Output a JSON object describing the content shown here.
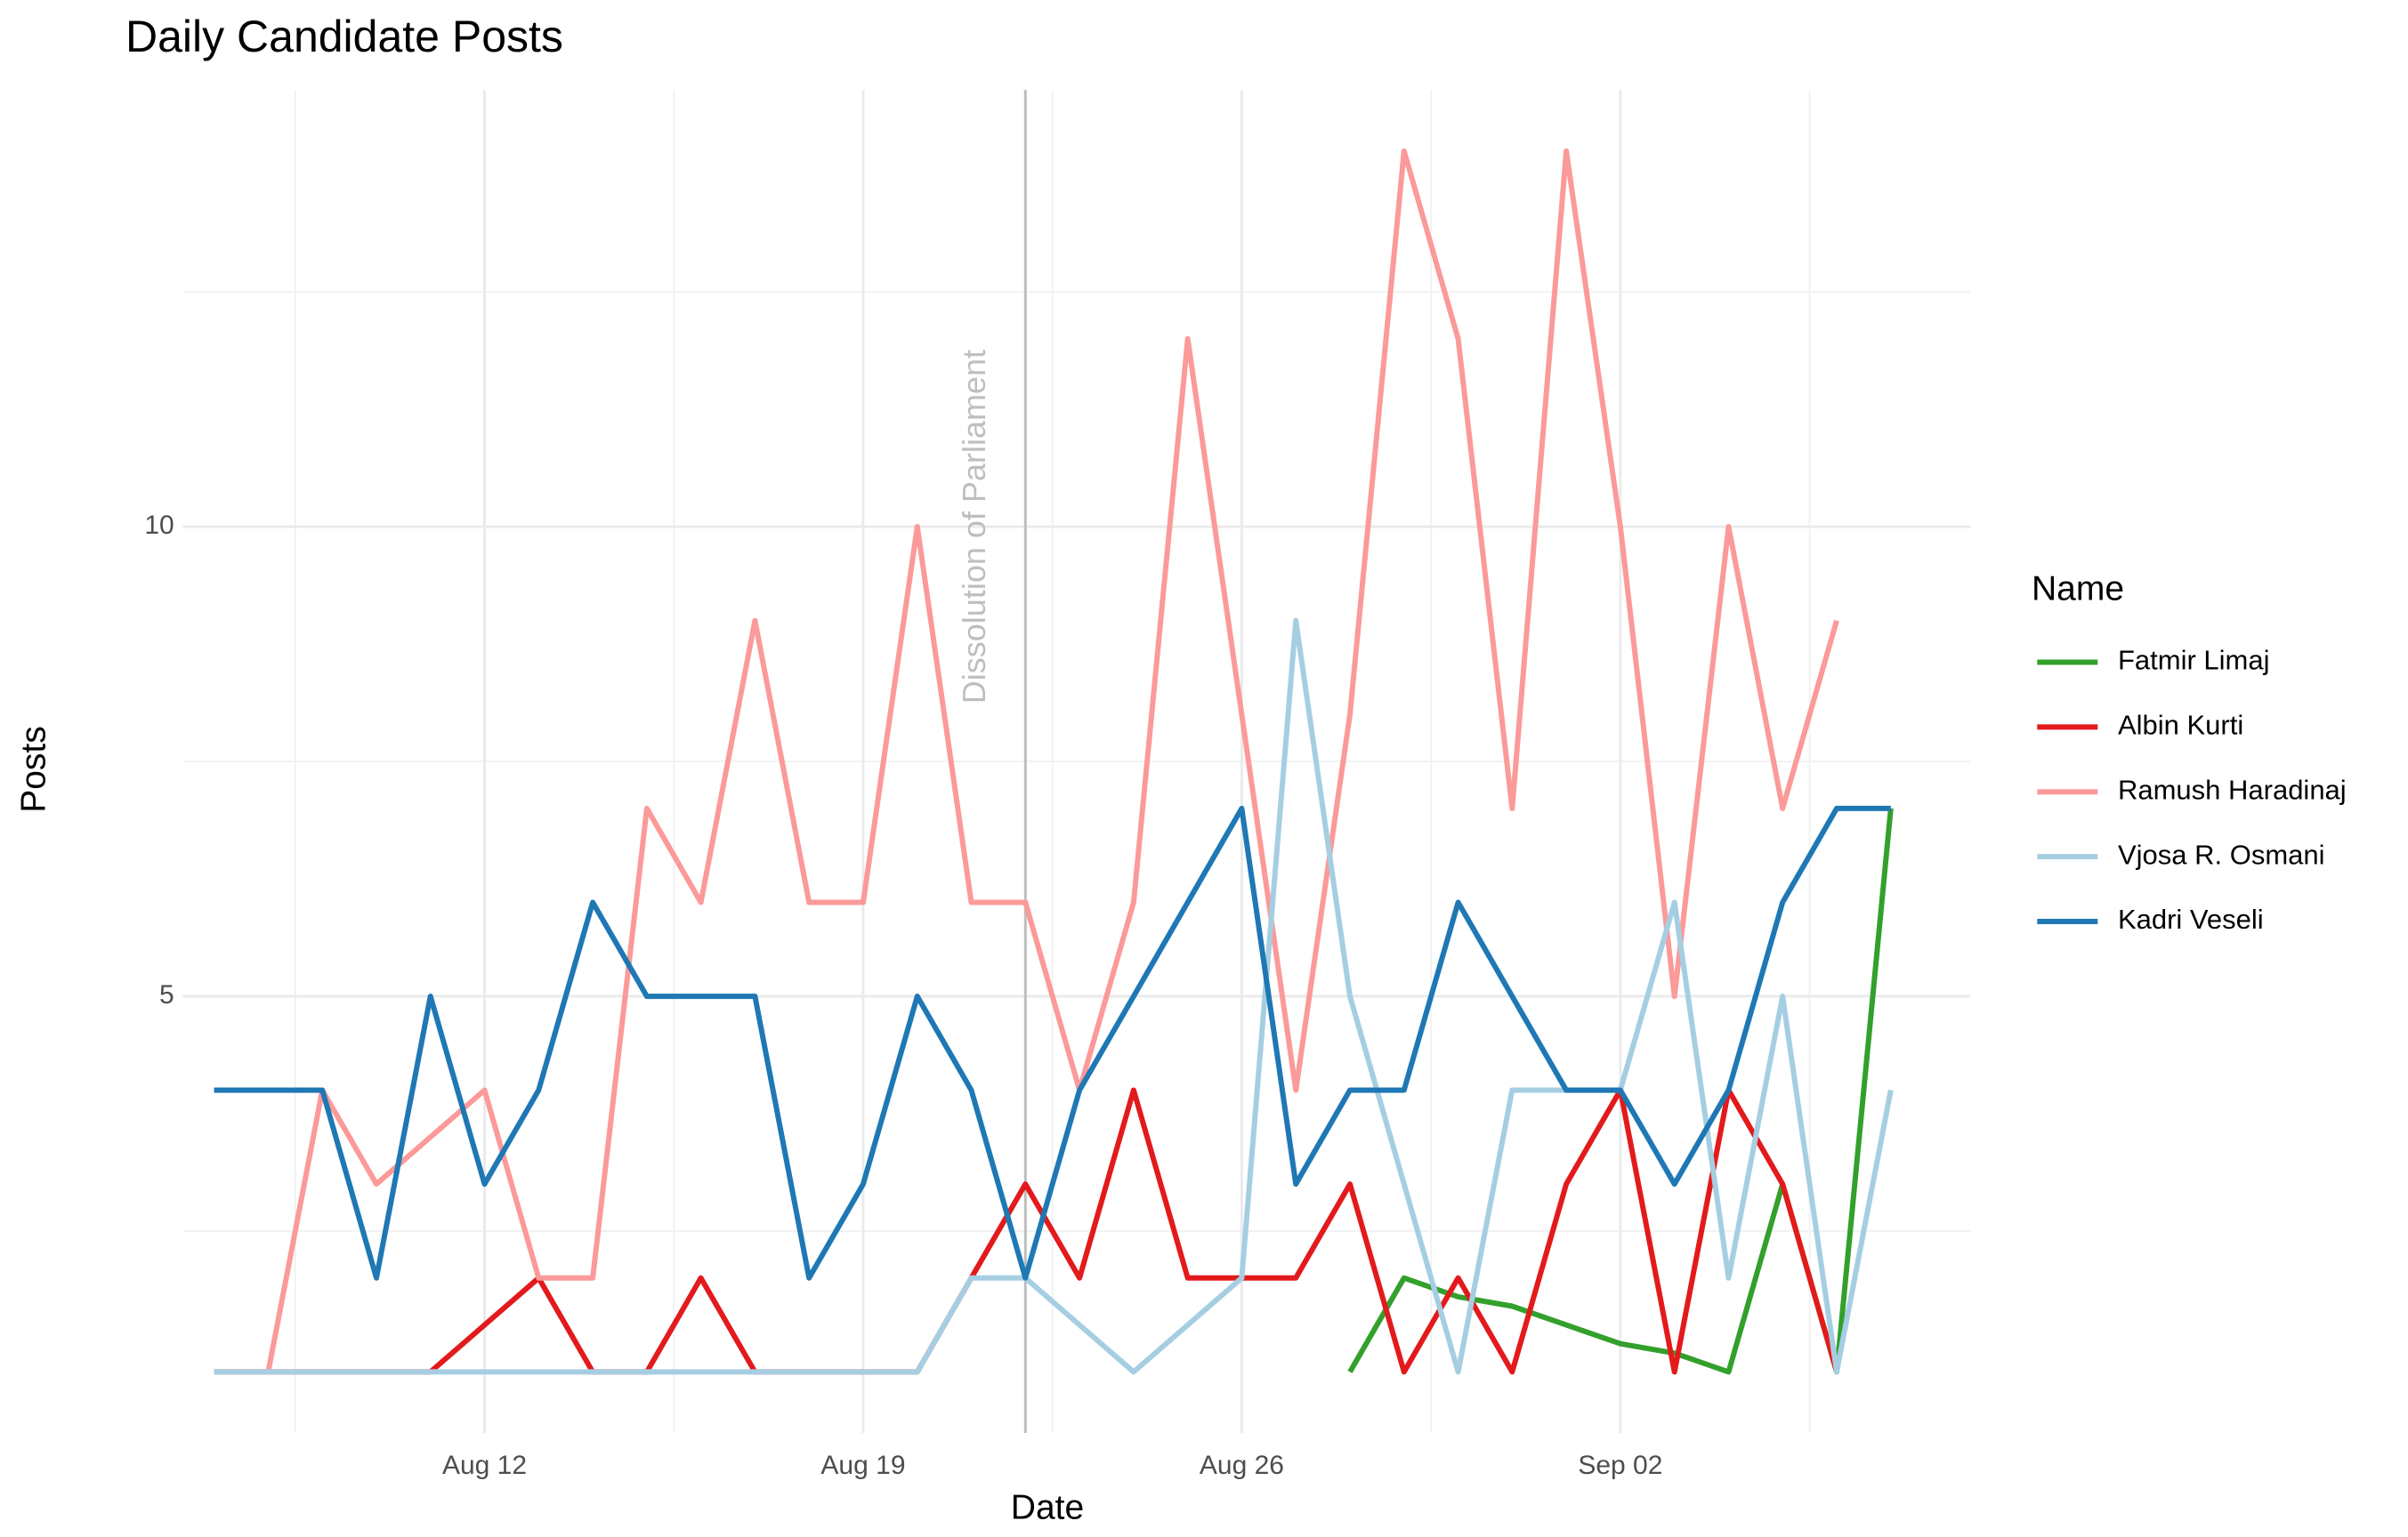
{
  "chart_data": {
    "type": "line",
    "title": "Daily Candidate Posts",
    "x_label": "Date",
    "y_label": "Posts",
    "legend_title": "Name",
    "x": [
      "Aug 07",
      "Aug 08",
      "Aug 09",
      "Aug 10",
      "Aug 11",
      "Aug 12",
      "Aug 13",
      "Aug 14",
      "Aug 15",
      "Aug 16",
      "Aug 17",
      "Aug 18",
      "Aug 19",
      "Aug 20",
      "Aug 21",
      "Aug 22",
      "Aug 23",
      "Aug 24",
      "Aug 25",
      "Aug 26",
      "Aug 27",
      "Aug 28",
      "Aug 29",
      "Aug 30",
      "Aug 31",
      "Sep 01",
      "Sep 02",
      "Sep 03",
      "Sep 04",
      "Sep 05",
      "Sep 06",
      "Sep 07"
    ],
    "xticks": [
      "Aug 12",
      "Aug 19",
      "Aug 26",
      "Sep 02"
    ],
    "ylim": [
      0.35,
      14.65
    ],
    "yticks": [
      5,
      10
    ],
    "grid": true,
    "legend": "right",
    "annotation": {
      "text": "Dissolution of Parliament",
      "x": "Aug 22",
      "color": "#bebebe"
    },
    "series": [
      {
        "name": "Fatmir Limaj",
        "color": "#33a02c",
        "values": [
          null,
          null,
          null,
          null,
          null,
          null,
          null,
          null,
          null,
          null,
          null,
          null,
          null,
          null,
          null,
          null,
          null,
          null,
          null,
          null,
          null,
          1,
          2,
          1.8,
          1.7,
          1.5,
          1.3,
          1.2,
          1,
          3,
          1,
          7
        ]
      },
      {
        "name": "Albin Kurti",
        "color": "#e31a1c",
        "values": [
          1,
          1,
          1,
          1,
          1,
          1.5,
          2,
          1,
          1,
          2,
          1,
          1,
          1,
          1,
          2,
          3,
          2,
          4,
          2,
          2,
          2,
          3,
          1,
          2,
          1,
          3,
          4,
          1,
          4,
          3,
          1,
          null
        ]
      },
      {
        "name": "Ramush Haradinaj",
        "color": "#fb9a99",
        "values": [
          1,
          1,
          4,
          3,
          3.5,
          4,
          2,
          2,
          7,
          6,
          9,
          6,
          6,
          10,
          6,
          6,
          4,
          6,
          12,
          8,
          4,
          8,
          14,
          12,
          7,
          14,
          10,
          5,
          10,
          7,
          9,
          null
        ]
      },
      {
        "name": "Vjosa R. Osmani",
        "color": "#a6cee3",
        "values": [
          1,
          1,
          1,
          1,
          1,
          1,
          1,
          1,
          1,
          1,
          1,
          1,
          1,
          1,
          2,
          2,
          1.5,
          1,
          1.5,
          2,
          9,
          5,
          3,
          1,
          4,
          4,
          4,
          6,
          2,
          5,
          1,
          4
        ]
      },
      {
        "name": "Kadri Veseli",
        "color": "#1f78b4",
        "values": [
          4,
          4,
          4,
          2,
          5,
          3,
          4,
          6,
          5,
          5,
          5,
          2,
          3,
          5,
          4,
          2,
          4,
          5,
          6,
          7,
          3,
          4,
          4,
          6,
          5,
          4,
          4,
          3,
          4,
          6,
          7,
          7
        ]
      }
    ]
  }
}
